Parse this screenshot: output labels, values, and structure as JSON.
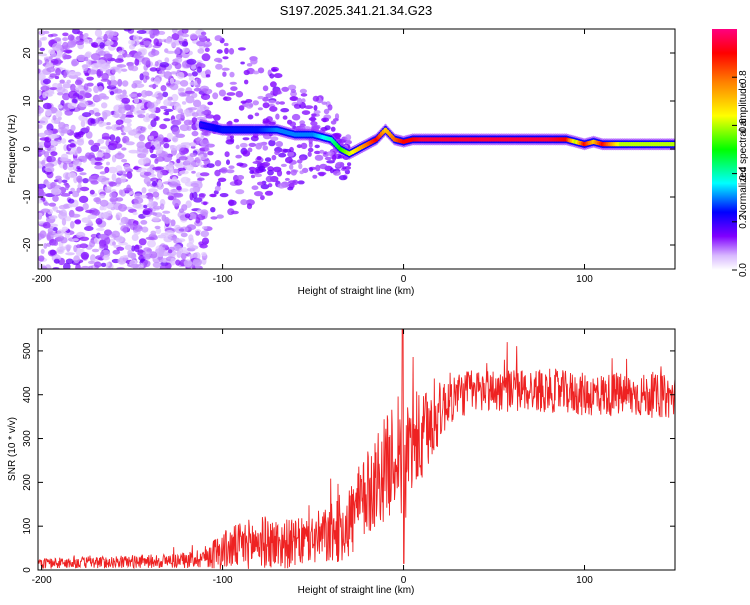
{
  "title": "S197.2025.341.21.34.G23",
  "chart_data": [
    {
      "type": "heatmap",
      "panel": "top",
      "xlabel": "Height of straight line (km)",
      "ylabel": "Frequency (Hz)",
      "xlim": [
        -202,
        150
      ],
      "ylim": [
        -25,
        25
      ],
      "xticks": [
        -200,
        -100,
        0,
        100
      ],
      "yticks": [
        -20,
        -10,
        0,
        10,
        20
      ],
      "xtick_labels": [
        "-200",
        "-100",
        "0",
        "100"
      ],
      "ytick_labels": [
        "-20",
        "-10",
        "0",
        "10",
        "20"
      ],
      "ridge": {
        "x": [
          -112,
          -100,
          -90,
          -80,
          -70,
          -60,
          -50,
          -40,
          -35,
          -30,
          -25,
          -20,
          -15,
          -10,
          -5,
          0,
          5,
          10,
          20,
          40,
          60,
          80,
          90,
          95,
          100,
          105,
          110,
          120,
          150
        ],
        "freq": [
          5,
          4,
          4,
          4,
          4,
          3,
          3,
          2,
          0,
          -1,
          0,
          1,
          2,
          4,
          2,
          1.5,
          2,
          2,
          2,
          2,
          2,
          2,
          2,
          1.5,
          1,
          1.5,
          1,
          1,
          1
        ],
        "amplitude": [
          0.2,
          0.25,
          0.25,
          0.25,
          0.3,
          0.3,
          0.3,
          0.4,
          0.5,
          0.6,
          0.7,
          0.8,
          0.9,
          0.7,
          0.8,
          0.9,
          0.9,
          0.95,
          0.95,
          0.95,
          0.95,
          0.95,
          0.9,
          0.6,
          0.9,
          0.7,
          0.9,
          0.6,
          0.6
        ]
      }
    },
    {
      "type": "line",
      "panel": "bottom",
      "xlabel": "Height of straight line (km)",
      "ylabel": "SNR (10 * v/v)",
      "xlim": [
        -202,
        150
      ],
      "ylim": [
        0,
        550
      ],
      "xticks": [
        -200,
        -100,
        0,
        100
      ],
      "yticks": [
        0,
        100,
        200,
        300,
        400,
        500
      ],
      "xtick_labels": [
        "-200",
        "-100",
        "0",
        "100"
      ],
      "ytick_labels": [
        "0",
        "100",
        "200",
        "300",
        "400",
        "500"
      ],
      "series": [
        {
          "name": "SNR",
          "color": "#ee2222",
          "envelope": {
            "x": [
              -202,
              -160,
              -120,
              -110,
              -100,
              -90,
              -80,
              -70,
              -60,
              -50,
              -40,
              -30,
              -20,
              -15,
              -10,
              -5,
              -2,
              0,
              2,
              5,
              10,
              15,
              20,
              25,
              30,
              40,
              60,
              80,
              100,
              120,
              150
            ],
            "mean": [
              15,
              18,
              22,
              30,
              45,
              55,
              65,
              60,
              60,
              70,
              80,
              110,
              170,
              210,
              230,
              260,
              300,
              120,
              280,
              290,
              290,
              330,
              360,
              390,
              400,
              410,
              410,
              410,
              400,
              400,
              395
            ],
            "spread": [
              12,
              14,
              18,
              25,
              45,
              55,
              60,
              60,
              55,
              60,
              70,
              90,
              100,
              110,
              120,
              120,
              150,
              100,
              120,
              120,
              110,
              90,
              70,
              60,
              55,
              50,
              50,
              50,
              50,
              50,
              50
            ]
          },
          "spike": {
            "x": -0.5,
            "y": 555
          }
        }
      ]
    }
  ],
  "colorbar": {
    "label": "Normalized spectral amplitude",
    "range": [
      0,
      1
    ],
    "ticks": [
      0.0,
      0.2,
      0.4,
      0.6,
      0.8
    ],
    "tick_labels": [
      "0.0",
      "0.2",
      "0.4",
      "0.6",
      "0.8"
    ],
    "stops": [
      "#ffffff",
      "#8000ff",
      "#0000ff",
      "#00ffff",
      "#00ff00",
      "#ffff00",
      "#ff8000",
      "#ff0000",
      "#ff0080"
    ]
  }
}
